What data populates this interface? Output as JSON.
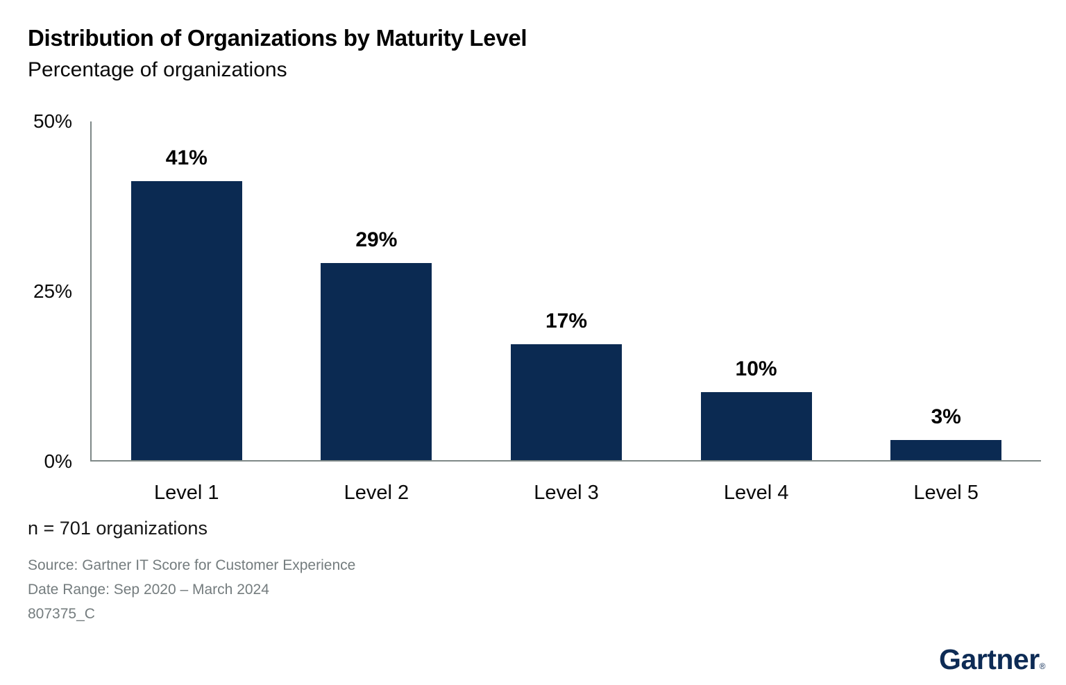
{
  "header": {
    "title": "Distribution of Organizations by Maturity Level",
    "subtitle": "Percentage of organizations"
  },
  "chart_data": {
    "type": "bar",
    "title": "Distribution of Organizations by Maturity Level",
    "subtitle": "Percentage of organizations",
    "categories": [
      "Level 1",
      "Level 2",
      "Level 3",
      "Level 4",
      "Level 5"
    ],
    "values": [
      41,
      29,
      17,
      10,
      3
    ],
    "value_labels": [
      "41%",
      "29%",
      "17%",
      "10%",
      "3%"
    ],
    "xlabel": "",
    "ylabel": "Percentage of organizations",
    "ylim": [
      0,
      50
    ],
    "y_ticks": [
      {
        "value": 50,
        "label": "50%"
      },
      {
        "value": 25,
        "label": "25%"
      },
      {
        "value": 0,
        "label": "0%"
      }
    ],
    "grid": false,
    "legend": "none",
    "bar_color": "#0b2a52",
    "axis_color": "#7e8887"
  },
  "footer": {
    "sample_note": "n = 701 organizations",
    "source_line": "Source: Gartner IT Score for Customer Experience",
    "date_range_line": "Date Range: Sep 2020 – March 2024",
    "figure_id": "807375_C"
  },
  "branding": {
    "logo_text": "Gartner",
    "registered_mark": "®",
    "logo_color": "#0d2b55"
  }
}
